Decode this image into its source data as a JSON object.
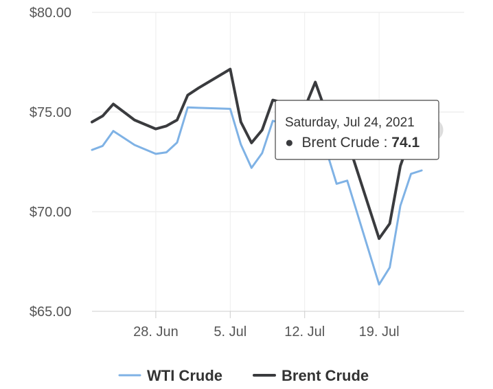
{
  "chart_data": {
    "type": "line",
    "title": "",
    "xlabel": "",
    "ylabel": "",
    "ylim": [
      65,
      80
    ],
    "yticks": [
      "$80.00",
      "$75.00",
      "$70.00",
      "$65.00"
    ],
    "ytick_values": [
      80,
      75,
      70,
      65
    ],
    "xticks": [
      "28. Jun",
      "5. Jul",
      "12. Jul",
      "19. Jul"
    ],
    "xtick_dates": [
      "2021-06-28",
      "2021-07-05",
      "2021-07-12",
      "2021-07-19"
    ],
    "xlim": [
      "2021-06-22",
      "2021-07-27"
    ],
    "grid": true,
    "legend_position": "bottom-center",
    "series": [
      {
        "name": "WTI Crude",
        "color": "#7fb2e5",
        "points": [
          [
            "2021-06-22",
            73.1
          ],
          [
            "2021-06-23",
            73.3
          ],
          [
            "2021-06-24",
            74.05
          ],
          [
            "2021-06-25",
            73.7
          ],
          [
            "2021-06-26",
            73.35
          ],
          [
            "2021-06-28",
            72.9
          ],
          [
            "2021-06-29",
            72.98
          ],
          [
            "2021-06-30",
            73.47
          ],
          [
            "2021-07-01",
            75.23
          ],
          [
            "2021-07-02",
            75.21
          ],
          [
            "2021-07-05",
            75.16
          ],
          [
            "2021-07-06",
            73.37
          ],
          [
            "2021-07-07",
            72.2
          ],
          [
            "2021-07-08",
            72.94
          ],
          [
            "2021-07-09",
            74.56
          ],
          [
            "2021-07-10",
            74.42
          ],
          [
            "2021-07-11",
            74.1
          ],
          [
            "2021-07-12",
            74.1
          ],
          [
            "2021-07-13",
            75.25
          ],
          [
            "2021-07-14",
            73.13
          ],
          [
            "2021-07-15",
            71.4
          ],
          [
            "2021-07-16",
            71.56
          ],
          [
            "2021-07-19",
            66.35
          ],
          [
            "2021-07-20",
            67.2
          ],
          [
            "2021-07-21",
            70.3
          ],
          [
            "2021-07-22",
            71.9
          ],
          [
            "2021-07-23",
            72.07
          ]
        ]
      },
      {
        "name": "Brent Crude",
        "color": "#3a3b3e",
        "points": [
          [
            "2021-06-22",
            74.5
          ],
          [
            "2021-06-23",
            74.8
          ],
          [
            "2021-06-24",
            75.4
          ],
          [
            "2021-06-25",
            75.0
          ],
          [
            "2021-06-26",
            74.6
          ],
          [
            "2021-06-28",
            74.15
          ],
          [
            "2021-06-29",
            74.3
          ],
          [
            "2021-06-30",
            74.6
          ],
          [
            "2021-07-01",
            75.85
          ],
          [
            "2021-07-02",
            76.2
          ],
          [
            "2021-07-05",
            77.15
          ],
          [
            "2021-07-06",
            74.5
          ],
          [
            "2021-07-07",
            73.45
          ],
          [
            "2021-07-08",
            74.1
          ],
          [
            "2021-07-09",
            75.6
          ],
          [
            "2021-07-12",
            75.2
          ],
          [
            "2021-07-13",
            76.5
          ],
          [
            "2021-07-14",
            75.0
          ],
          [
            "2021-07-15",
            74.0
          ],
          [
            "2021-07-16",
            73.6
          ],
          [
            "2021-07-19",
            68.65
          ],
          [
            "2021-07-20",
            69.4
          ],
          [
            "2021-07-21",
            72.3
          ],
          [
            "2021-07-22",
            73.8
          ],
          [
            "2021-07-23",
            74.1
          ],
          [
            "2021-07-24",
            74.1
          ]
        ]
      }
    ],
    "tooltip": {
      "date_label": "Saturday, Jul 24, 2021",
      "series_name": "Brent Crude",
      "value_label": "74.1",
      "separator": ": ",
      "bullet": "●",
      "point": [
        "2021-07-24",
        74.1
      ]
    }
  }
}
